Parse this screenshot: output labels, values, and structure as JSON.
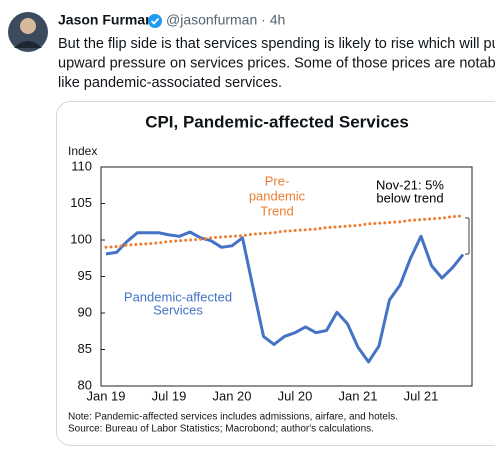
{
  "tweet": {
    "author": "Jason Furman",
    "meta": "@jasonfurman · 4h",
    "text_lines": [
      "But the flip side is that services spending is likely to rise which will put",
      "upward pressure on services prices. Some of those prices are notably low",
      "like pandemic-associated services."
    ]
  },
  "chart_data": {
    "type": "line",
    "title": "CPI, Pandemic-affected Services",
    "ylabel": "Index",
    "categories": [
      "Jan 19",
      null,
      null,
      null,
      null,
      null,
      "Jul 19",
      null,
      null,
      null,
      null,
      null,
      "Jan 20",
      null,
      null,
      null,
      null,
      null,
      "Jul 20",
      null,
      null,
      null,
      null,
      null,
      "Jan 21",
      null,
      null,
      null,
      null,
      null,
      "Jul 21",
      null,
      null,
      null,
      null
    ],
    "series": [
      {
        "color": "#4472c4",
        "dash": "solid",
        "values": [
          98.1,
          98.3,
          99.8,
          101,
          101,
          101,
          100.7,
          100.5,
          101.1,
          100.3,
          99.9,
          99.0,
          99.2,
          100.3,
          93.5,
          86.8,
          85.7,
          86.8,
          87.3,
          88.1,
          87.3,
          87.6,
          90.1,
          88.5,
          85.3,
          83.3,
          85.5,
          91.8,
          93.8,
          97.5,
          100.5,
          96.5,
          94.8,
          96.2,
          98.0
        ]
      },
      {
        "color": "#ed7d31",
        "dash": "dotted",
        "values": [
          99.0,
          99.1,
          99.3,
          99.4,
          99.5,
          99.6,
          99.8,
          99.9,
          100.0,
          100.1,
          100.3,
          100.4,
          100.5,
          100.6,
          100.8,
          100.9,
          101.0,
          101.2,
          101.3,
          101.4,
          101.5,
          101.7,
          101.8,
          101.9,
          102.0,
          102.2,
          102.3,
          102.4,
          102.5,
          102.7,
          102.8,
          102.9,
          103.0,
          103.2,
          103.3
        ]
      }
    ],
    "ylim": [
      80,
      110
    ],
    "yticks": [
      80,
      85,
      90,
      95,
      100,
      105,
      110
    ],
    "annotations": [
      {
        "lines": [
          "Pre-",
          "pandemic",
          "Trend"
        ],
        "color": "#ed7d31"
      },
      {
        "lines": [
          "Nov-21: 5%",
          "below trend"
        ],
        "color": "#000000"
      },
      {
        "lines": [
          "Pandemic-affected",
          "Services"
        ],
        "color": "#4472c4"
      }
    ],
    "notes": [
      "Note: Pandemic-affected services includes admissions, airfare, and hotels.",
      "Source: Bureau of Labor Statistics; Macrobond; author's calculations."
    ]
  }
}
